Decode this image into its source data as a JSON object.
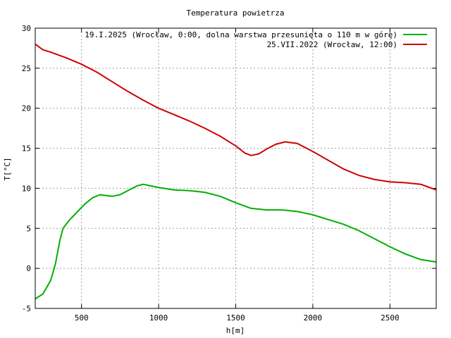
{
  "chart_data": {
    "type": "line",
    "title": "Temperatura powietrza",
    "xlabel": "h[m]",
    "ylabel": "T[°C]",
    "xlim": [
      200,
      2800
    ],
    "ylim": [
      -5,
      30
    ],
    "xticks": [
      500,
      1000,
      1500,
      2000,
      2500
    ],
    "yticks": [
      -5,
      0,
      5,
      10,
      15,
      20,
      25,
      30
    ],
    "grid": true,
    "legend_position": "top-right",
    "series": [
      {
        "name": "19.I.2025 (Wrocław, 0:00, dolna warstwa przesunięta o 110 m w górę)",
        "color": "#00b000",
        "points": [
          [
            200,
            -3.8
          ],
          [
            250,
            -3.2
          ],
          [
            300,
            -1.5
          ],
          [
            330,
            0.5
          ],
          [
            360,
            3.5
          ],
          [
            380,
            5.0
          ],
          [
            420,
            6.0
          ],
          [
            470,
            7.0
          ],
          [
            520,
            8.0
          ],
          [
            570,
            8.8
          ],
          [
            620,
            9.2
          ],
          [
            660,
            9.1
          ],
          [
            700,
            9.0
          ],
          [
            750,
            9.2
          ],
          [
            800,
            9.7
          ],
          [
            860,
            10.3
          ],
          [
            900,
            10.5
          ],
          [
            950,
            10.3
          ],
          [
            1000,
            10.1
          ],
          [
            1100,
            9.8
          ],
          [
            1200,
            9.7
          ],
          [
            1300,
            9.5
          ],
          [
            1400,
            9.0
          ],
          [
            1500,
            8.2
          ],
          [
            1600,
            7.5
          ],
          [
            1700,
            7.3
          ],
          [
            1800,
            7.3
          ],
          [
            1900,
            7.1
          ],
          [
            2000,
            6.7
          ],
          [
            2100,
            6.1
          ],
          [
            2200,
            5.5
          ],
          [
            2300,
            4.7
          ],
          [
            2400,
            3.7
          ],
          [
            2500,
            2.7
          ],
          [
            2600,
            1.8
          ],
          [
            2700,
            1.1
          ],
          [
            2800,
            0.8
          ]
        ]
      },
      {
        "name": "25.VII.2022 (Wrocław, 12:00)",
        "color": "#d00000",
        "points": [
          [
            200,
            28.0
          ],
          [
            250,
            27.3
          ],
          [
            300,
            27.0
          ],
          [
            400,
            26.3
          ],
          [
            500,
            25.5
          ],
          [
            600,
            24.5
          ],
          [
            700,
            23.3
          ],
          [
            800,
            22.1
          ],
          [
            900,
            21.0
          ],
          [
            1000,
            20.0
          ],
          [
            1100,
            19.2
          ],
          [
            1200,
            18.4
          ],
          [
            1300,
            17.5
          ],
          [
            1400,
            16.5
          ],
          [
            1500,
            15.3
          ],
          [
            1560,
            14.4
          ],
          [
            1600,
            14.1
          ],
          [
            1650,
            14.3
          ],
          [
            1700,
            14.9
          ],
          [
            1760,
            15.5
          ],
          [
            1820,
            15.8
          ],
          [
            1900,
            15.6
          ],
          [
            2000,
            14.6
          ],
          [
            2100,
            13.5
          ],
          [
            2200,
            12.4
          ],
          [
            2300,
            11.6
          ],
          [
            2400,
            11.1
          ],
          [
            2500,
            10.8
          ],
          [
            2600,
            10.7
          ],
          [
            2700,
            10.5
          ],
          [
            2800,
            9.8
          ]
        ]
      }
    ]
  }
}
